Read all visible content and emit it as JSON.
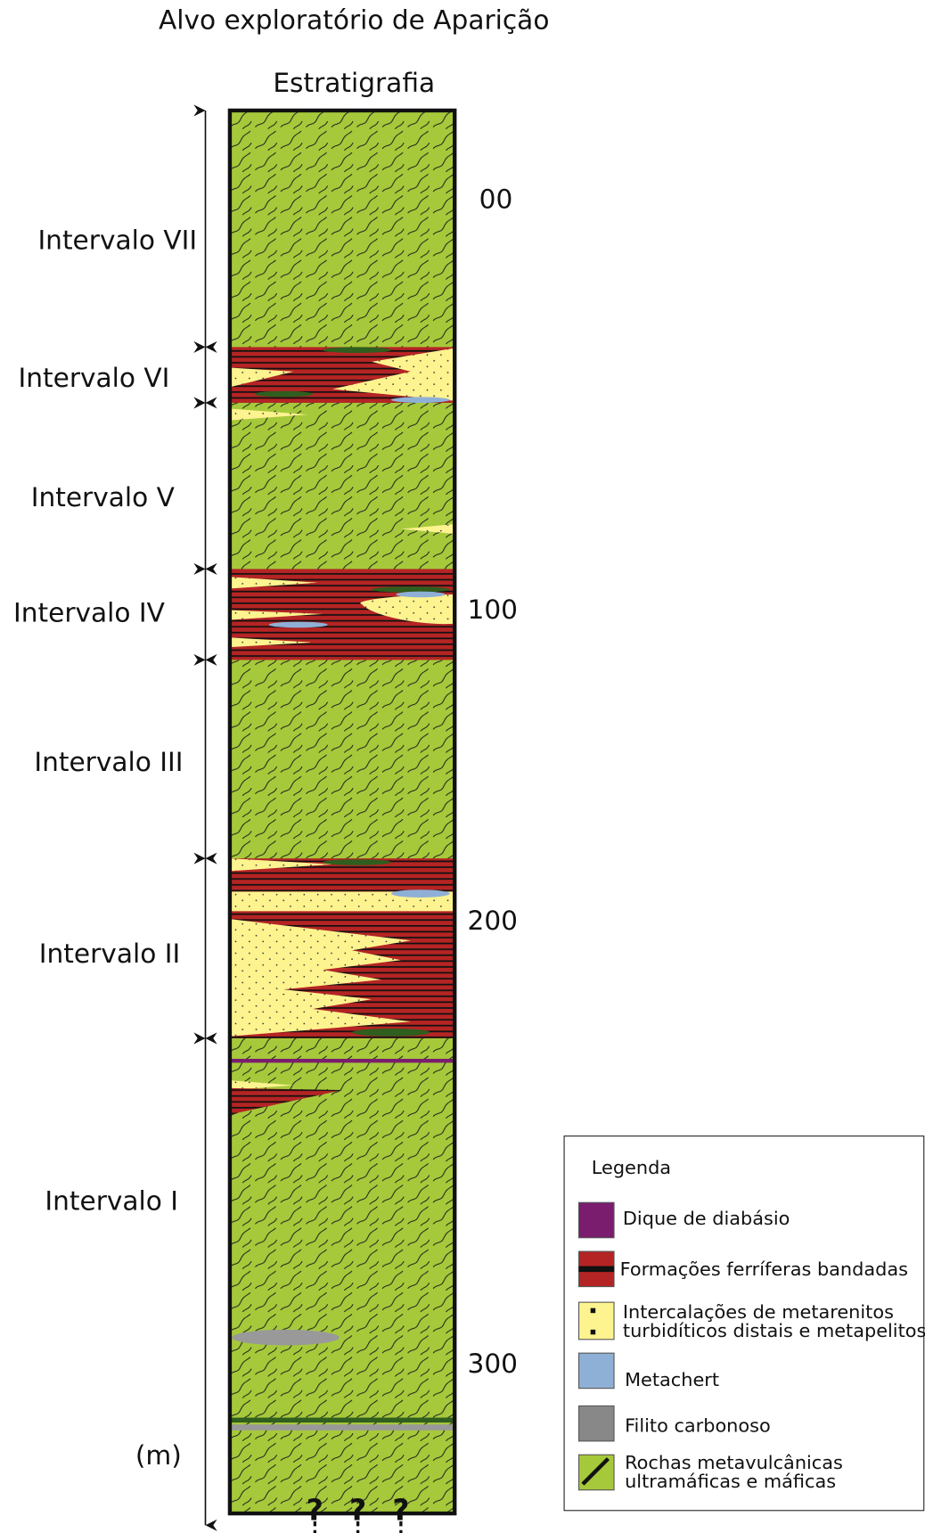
{
  "title": "Alvo exploratório de Aparição",
  "column_title": "Estratigrafia",
  "intervals": [
    {
      "label": "Intervalo VII"
    },
    {
      "label": "Intervalo VI"
    },
    {
      "label": "Intervalo V"
    },
    {
      "label": "Intervalo IV"
    },
    {
      "label": "Intervalo III"
    },
    {
      "label": "Intervalo II"
    },
    {
      "label": "Intervalo I"
    }
  ],
  "depth_labels": [
    "00",
    "100",
    "200",
    "300"
  ],
  "unit": "(m)",
  "question_marks": [
    "?",
    "?",
    "?"
  ],
  "legend": {
    "title": "Legenda",
    "items": [
      {
        "lines": [
          "Dique de diabásio"
        ]
      },
      {
        "lines": [
          "Formações ferríferas bandadas"
        ]
      },
      {
        "lines": [
          "Intercalações de metarenitos",
          "turbidíticos distais e metapelitos"
        ]
      },
      {
        "lines": [
          "Metachert"
        ]
      },
      {
        "lines": [
          "Filito carbonoso"
        ]
      },
      {
        "lines": [
          "Rochas metavulcânicas",
          "ultramáficas e máficas"
        ]
      }
    ]
  }
}
